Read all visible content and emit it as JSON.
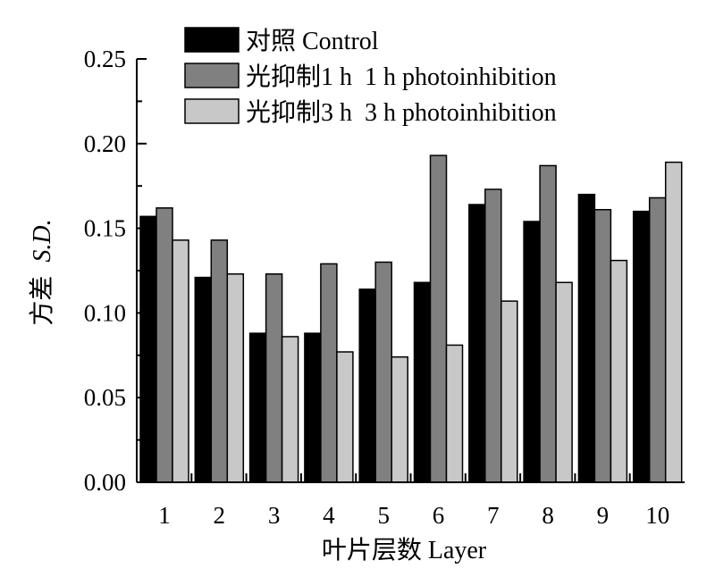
{
  "chart_data": {
    "type": "bar",
    "categories": [
      "1",
      "2",
      "3",
      "4",
      "5",
      "6",
      "7",
      "8",
      "9",
      "10"
    ],
    "series": [
      {
        "name": "对照 Control",
        "color": "#000000",
        "values": [
          0.157,
          0.121,
          0.088,
          0.088,
          0.114,
          0.118,
          0.164,
          0.154,
          0.17,
          0.16
        ]
      },
      {
        "name": "光抑制1 h  1 h photoinhibition",
        "color": "#808080",
        "values": [
          0.162,
          0.143,
          0.123,
          0.129,
          0.13,
          0.193,
          0.173,
          0.187,
          0.161,
          0.168
        ]
      },
      {
        "name": "光抑制3 h  3 h photoinhibition",
        "color": "#c8c8c8",
        "values": [
          0.143,
          0.123,
          0.086,
          0.077,
          0.074,
          0.081,
          0.107,
          0.118,
          0.131,
          0.189
        ]
      }
    ],
    "ylim": [
      0,
      0.25
    ],
    "yticks": [
      "0.00",
      "0.05",
      "0.10",
      "0.15",
      "0.20",
      "0.25"
    ],
    "ylabel_cn": "方差",
    "ylabel_en": "S.D.",
    "xlabel": "叶片层数 Layer",
    "legend_position": "top-left",
    "grid": false
  }
}
